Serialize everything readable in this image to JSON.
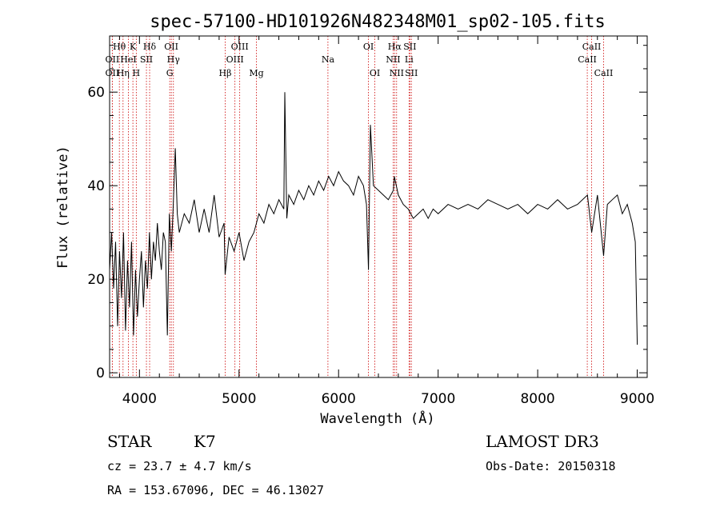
{
  "chart_data": {
    "type": "line",
    "title": "spec-57100-HD101926N482348M01_sp02-105.fits",
    "xlabel": "Wavelength (Å)",
    "ylabel": "Flux (relative)",
    "xlim": [
      3700,
      9100
    ],
    "ylim": [
      -1,
      72
    ],
    "xticks": [
      4000,
      5000,
      6000,
      7000,
      8000,
      9000
    ],
    "xtick_labels": [
      "4000",
      "5000",
      "6000",
      "7000",
      "8000",
      "9000"
    ],
    "yticks": [
      0,
      20,
      40,
      60
    ],
    "ytick_labels": [
      "0",
      "20",
      "40",
      "60"
    ],
    "grid": false,
    "series": [
      {
        "name": "spectrum",
        "x": [
          3700,
          3720,
          3740,
          3760,
          3780,
          3800,
          3820,
          3840,
          3860,
          3880,
          3900,
          3920,
          3940,
          3960,
          3980,
          4000,
          4020,
          4040,
          4060,
          4080,
          4100,
          4120,
          4140,
          4160,
          4180,
          4200,
          4220,
          4240,
          4260,
          4280,
          4300,
          4320,
          4340,
          4360,
          4380,
          4400,
          4450,
          4500,
          4550,
          4600,
          4650,
          4700,
          4750,
          4800,
          4850,
          4860,
          4900,
          4950,
          5000,
          5050,
          5100,
          5150,
          5200,
          5250,
          5300,
          5350,
          5400,
          5450,
          5460,
          5480,
          5500,
          5550,
          5600,
          5650,
          5700,
          5750,
          5800,
          5850,
          5900,
          5950,
          6000,
          6050,
          6100,
          6150,
          6200,
          6250,
          6280,
          6300,
          6320,
          6350,
          6400,
          6450,
          6500,
          6550,
          6560,
          6600,
          6650,
          6700,
          6750,
          6800,
          6850,
          6900,
          6950,
          7000,
          7100,
          7200,
          7300,
          7400,
          7500,
          7600,
          7700,
          7800,
          7900,
          8000,
          8100,
          8200,
          8300,
          8400,
          8500,
          8542,
          8600,
          8662,
          8700,
          8750,
          8800,
          8850,
          8900,
          8950,
          8980,
          9000
        ],
        "y": [
          22,
          30,
          18,
          28,
          10,
          26,
          16,
          30,
          9,
          24,
          14,
          28,
          8,
          22,
          12,
          20,
          26,
          14,
          24,
          18,
          30,
          20,
          28,
          24,
          32,
          26,
          22,
          30,
          28,
          8,
          34,
          26,
          36,
          48,
          34,
          30,
          34,
          32,
          37,
          30,
          35,
          30,
          38,
          29,
          32,
          21,
          29,
          26,
          30,
          24,
          28,
          30,
          34,
          32,
          36,
          34,
          37,
          35,
          60,
          33,
          38,
          36,
          39,
          37,
          40,
          38,
          41,
          39,
          42,
          40,
          43,
          41,
          40,
          38,
          42,
          40,
          36,
          22,
          53,
          40,
          39,
          38,
          37,
          39,
          42,
          38,
          36,
          35,
          33,
          34,
          35,
          33,
          35,
          34,
          36,
          35,
          36,
          35,
          37,
          36,
          35,
          36,
          34,
          36,
          35,
          37,
          35,
          36,
          38,
          30,
          38,
          25,
          36,
          37,
          38,
          34,
          36,
          32,
          28,
          6
        ]
      }
    ],
    "lines": [
      {
        "label": "Hθ",
        "x": 3798,
        "row": 1
      },
      {
        "label": "OII",
        "x": 3727,
        "row": 2
      },
      {
        "label": "OII",
        "x": 3727,
        "row": 3
      },
      {
        "label": "Hη",
        "x": 3835,
        "row": 3
      },
      {
        "label": "HeI",
        "x": 3889,
        "row": 2
      },
      {
        "label": "K",
        "x": 3934,
        "row": 1
      },
      {
        "label": "H",
        "x": 3968,
        "row": 3
      },
      {
        "label": "SII",
        "x": 4070,
        "row": 2
      },
      {
        "label": "Hδ",
        "x": 4102,
        "row": 1
      },
      {
        "label": "OII",
        "x": 4320,
        "row": 1
      },
      {
        "label": "Hγ",
        "x": 4341,
        "row": 2
      },
      {
        "label": "G",
        "x": 4304,
        "row": 3
      },
      {
        "label": "Hβ",
        "x": 4861,
        "row": 3
      },
      {
        "label": "OIII",
        "x": 4959,
        "row": 2
      },
      {
        "label": "OIII",
        "x": 5007,
        "row": 1
      },
      {
        "label": "Mg",
        "x": 5175,
        "row": 3
      },
      {
        "label": "Na",
        "x": 5893,
        "row": 2
      },
      {
        "label": "OI",
        "x": 6300,
        "row": 1
      },
      {
        "label": "OI",
        "x": 6364,
        "row": 3
      },
      {
        "label": "Hα",
        "x": 6563,
        "row": 1
      },
      {
        "label": "NII",
        "x": 6548,
        "row": 2
      },
      {
        "label": "NII",
        "x": 6583,
        "row": 3
      },
      {
        "label": "SII",
        "x": 6716,
        "row": 1
      },
      {
        "label": "Li",
        "x": 6708,
        "row": 2
      },
      {
        "label": "SII",
        "x": 6731,
        "row": 3
      },
      {
        "label": "CaII",
        "x": 8542,
        "row": 1
      },
      {
        "label": "CaII",
        "x": 8498,
        "row": 2
      },
      {
        "label": "CaII",
        "x": 8662,
        "row": 3
      }
    ],
    "line_color": "#cc0000"
  },
  "info": {
    "class": "STAR",
    "subclass": "K7",
    "cz": "cz = 23.7 ± 4.7 km/s",
    "radec": "RA = 153.67096, DEC =  46.13027",
    "survey": "LAMOST DR3",
    "obsdate": "Obs-Date: 20150318"
  }
}
